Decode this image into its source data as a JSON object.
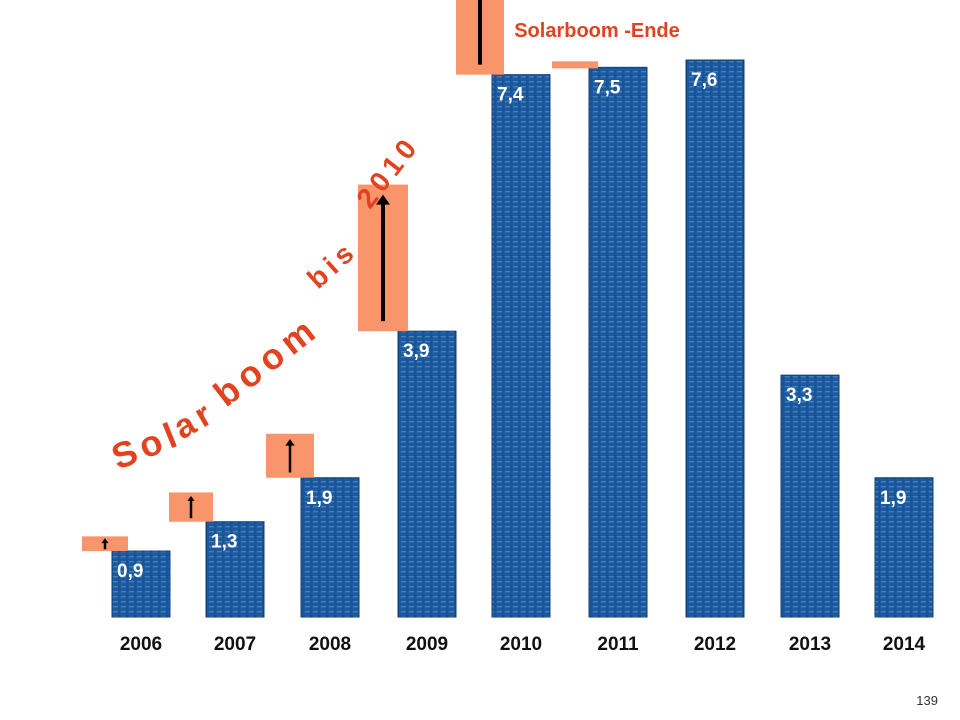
{
  "chart_data": {
    "type": "bar",
    "title": "Solarboom -Ende",
    "categories": [
      "2006",
      "2007",
      "2008",
      "2009",
      "2010",
      "2011",
      "2012",
      "2013",
      "2014"
    ],
    "values": [
      0.9,
      1.3,
      1.9,
      3.9,
      7.4,
      7.5,
      7.6,
      3.3,
      1.9
    ],
    "value_labels": [
      "0,9",
      "1,3",
      "1,9",
      "3,9",
      "7,4",
      "7,5",
      "7,6",
      "3,3",
      "1,9"
    ],
    "increase_values": [
      0.2,
      0.4,
      0.6,
      2.0,
      3.5
    ],
    "increase_categories": [
      "2006",
      "2007",
      "2008",
      "2009",
      "2010"
    ],
    "end_marker_value": 7.5,
    "ylim": [
      0,
      7.6
    ],
    "xlabel": "",
    "ylabel": "",
    "grid": false,
    "annotation": "Solarboom bis 2010",
    "annotation_words": [
      "Sol",
      "ar",
      "boom",
      "bis",
      "2010"
    ],
    "colors": {
      "bar": "#1b5aa0",
      "bar_texture": "#6f98c6",
      "increase": "#f9956a",
      "arrow": "#000000",
      "title": "#e2431e",
      "annotation": "#e2431e",
      "label": "#ffffff",
      "tick_label": "#111111"
    }
  },
  "page_number": "139"
}
